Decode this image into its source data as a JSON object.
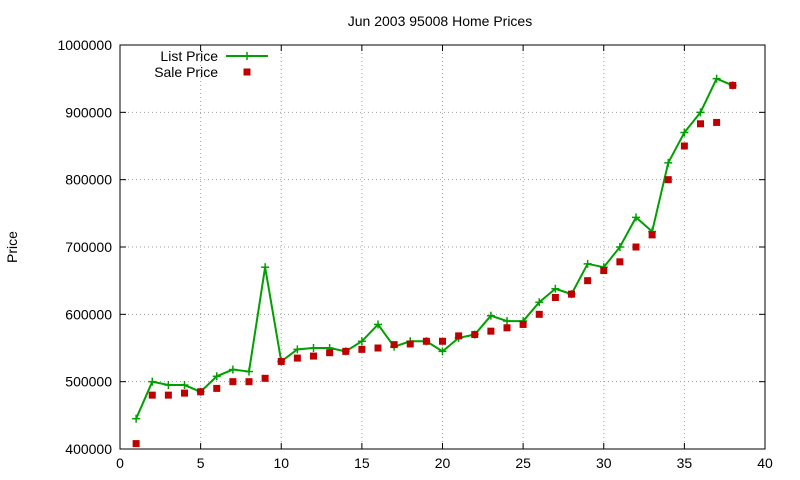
{
  "chart_data": {
    "type": "line",
    "title": "Jun 2003 95008 Home Prices",
    "xlabel": "",
    "ylabel": "Price",
    "xlim": [
      0,
      40
    ],
    "ylim": [
      400000,
      1000000
    ],
    "xticks": [
      0,
      5,
      10,
      15,
      20,
      25,
      30,
      35,
      40
    ],
    "yticks": [
      400000,
      500000,
      600000,
      700000,
      800000,
      900000,
      1000000
    ],
    "grid": true,
    "legend_position": "top-left",
    "series": [
      {
        "name": "List Price",
        "style": "line-plus",
        "color": "#00a000",
        "x": [
          1,
          2,
          3,
          4,
          5,
          6,
          7,
          8,
          9,
          10,
          11,
          12,
          13,
          14,
          15,
          16,
          17,
          18,
          19,
          20,
          21,
          22,
          23,
          24,
          25,
          26,
          27,
          28,
          29,
          30,
          31,
          32,
          33,
          34,
          35,
          36,
          37,
          38
        ],
        "y": [
          445000,
          500000,
          495000,
          495000,
          485000,
          508000,
          518000,
          515000,
          670000,
          530000,
          548000,
          550000,
          550000,
          545000,
          560000,
          585000,
          552000,
          560000,
          560000,
          545000,
          565000,
          570000,
          598000,
          590000,
          590000,
          618000,
          638000,
          630000,
          675000,
          670000,
          700000,
          744000,
          723000,
          825000,
          870000,
          900000,
          950000,
          940000
        ]
      },
      {
        "name": "Sale Price",
        "style": "square",
        "color": "#c00000",
        "x": [
          1,
          2,
          3,
          4,
          5,
          6,
          7,
          8,
          9,
          10,
          11,
          12,
          13,
          14,
          15,
          16,
          17,
          18,
          19,
          20,
          21,
          22,
          23,
          24,
          25,
          26,
          27,
          28,
          29,
          30,
          31,
          32,
          33,
          34,
          35,
          36,
          37,
          38
        ],
        "y": [
          408000,
          480000,
          480000,
          483000,
          485000,
          490000,
          500000,
          500000,
          505000,
          530000,
          535000,
          538000,
          543000,
          545000,
          548000,
          550000,
          555000,
          556000,
          560000,
          560000,
          568000,
          570000,
          575000,
          580000,
          585000,
          600000,
          625000,
          630000,
          650000,
          665000,
          678000,
          700000,
          718000,
          800000,
          850000,
          883000,
          885000,
          940000
        ]
      }
    ]
  }
}
